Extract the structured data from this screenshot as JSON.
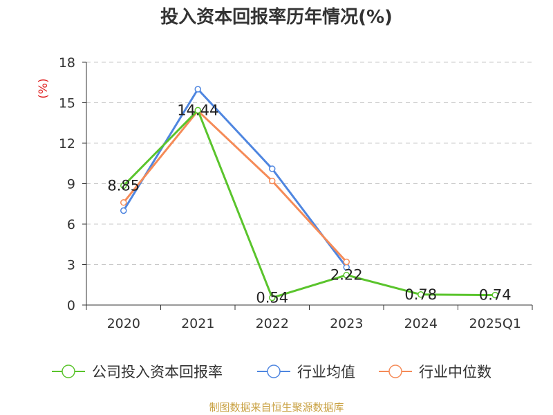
{
  "chart_data": {
    "type": "line",
    "title": "投入资本回报率历年情况(%)",
    "ylabel": "(%)",
    "categories": [
      "2020",
      "2021",
      "2022",
      "2023",
      "2024",
      "2025Q1"
    ],
    "ylim": [
      0,
      18
    ],
    "yticks": [
      0,
      3,
      6,
      9,
      12,
      15,
      18
    ],
    "grid": true,
    "series": [
      {
        "name": "公司投入资本回报率",
        "color": "#5ac42c",
        "values": [
          8.85,
          14.44,
          0.54,
          2.22,
          0.78,
          0.74
        ],
        "labels": [
          "8.85",
          "14.44",
          "0.54",
          "2.22",
          "0.78",
          "0.74"
        ]
      },
      {
        "name": "行业均值",
        "color": "#4f86e0",
        "values": [
          7.0,
          16.0,
          10.1,
          2.8,
          null,
          null
        ]
      },
      {
        "name": "行业中位数",
        "color": "#f58b58",
        "values": [
          7.6,
          14.4,
          9.2,
          3.2,
          null,
          null
        ]
      }
    ],
    "legend": "bottom",
    "source": "制图数据来自恒生聚源数据库"
  }
}
